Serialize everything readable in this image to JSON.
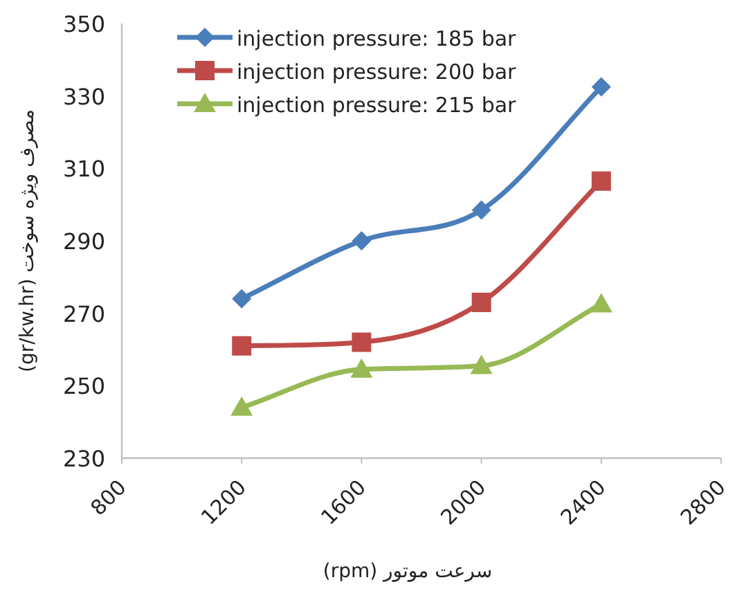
{
  "chart_data": {
    "type": "line",
    "xlabel": "سرعت موتور (rpm)",
    "ylabel": "مصرف ویژه سوخت (gr/kw.hr)",
    "x": [
      1200,
      1600,
      2000,
      2400
    ],
    "xlim": [
      800,
      2800
    ],
    "xticks": [
      800,
      1200,
      1600,
      2000,
      2400,
      2800
    ],
    "ylim": [
      230,
      350
    ],
    "yticks": [
      230,
      250,
      270,
      290,
      310,
      330,
      350
    ],
    "grid": false,
    "legend": "top left",
    "line_style": "solid",
    "series": [
      {
        "name": "injection pressure: 185 bar",
        "color": "#4a7ebb",
        "marker": "diamond",
        "values": [
          274,
          290,
          298.5,
          332.5
        ]
      },
      {
        "name": "injection pressure: 200 bar",
        "color": "#be4b48",
        "marker": "square",
        "values": [
          261,
          262,
          273,
          306.5
        ]
      },
      {
        "name": "injection pressure: 215 bar",
        "color": "#98b954",
        "marker": "triangle",
        "values": [
          244,
          254.5,
          255.5,
          272.5
        ]
      }
    ]
  }
}
